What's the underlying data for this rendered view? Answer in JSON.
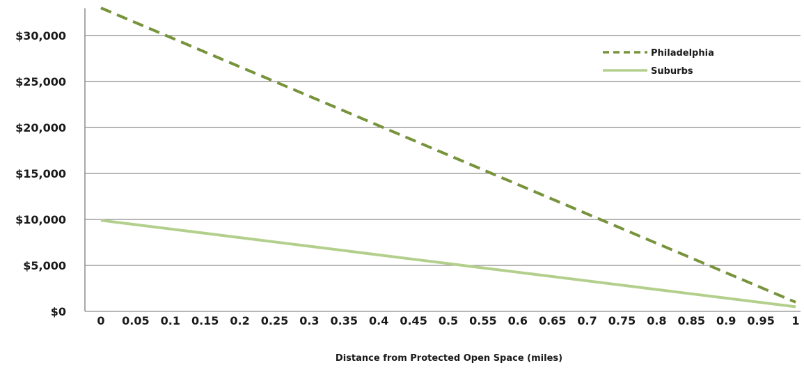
{
  "chart_data": {
    "type": "line",
    "xlabel": "Distance from Protected Open Space (miles)",
    "ylabel": "",
    "x": [
      "0",
      "0.05",
      "0.1",
      "0.15",
      "0.2",
      "0.25",
      "0.3",
      "0.35",
      "0.4",
      "0.45",
      "0.5",
      "0.55",
      "0.6",
      "0.65",
      "0.7",
      "0.75",
      "0.8",
      "0.85",
      "0.9",
      "0.95",
      "1"
    ],
    "y_ticks": [
      "$0",
      "$5,000",
      "$10,000",
      "$15,000",
      "$20,000",
      "$25,000",
      "$30,000"
    ],
    "ylim": [
      0,
      33000
    ],
    "grid": true,
    "legend_position": "top-right",
    "series": [
      {
        "name": "Philadelphia",
        "style": "dashed",
        "color": "#77933C",
        "values": [
          33000,
          31400,
          29800,
          28200,
          26600,
          25000,
          23400,
          21800,
          20200,
          18600,
          17000,
          15400,
          13800,
          12200,
          10600,
          9000,
          7400,
          5800,
          4200,
          2600,
          1000
        ]
      },
      {
        "name": "Suburbs",
        "style": "solid",
        "color": "#B3CF8C",
        "values": [
          9900,
          9430,
          8960,
          8490,
          8020,
          7550,
          7080,
          6610,
          6140,
          5670,
          5200,
          4730,
          4260,
          3790,
          3320,
          2850,
          2380,
          1910,
          1440,
          970,
          500
        ]
      }
    ]
  }
}
